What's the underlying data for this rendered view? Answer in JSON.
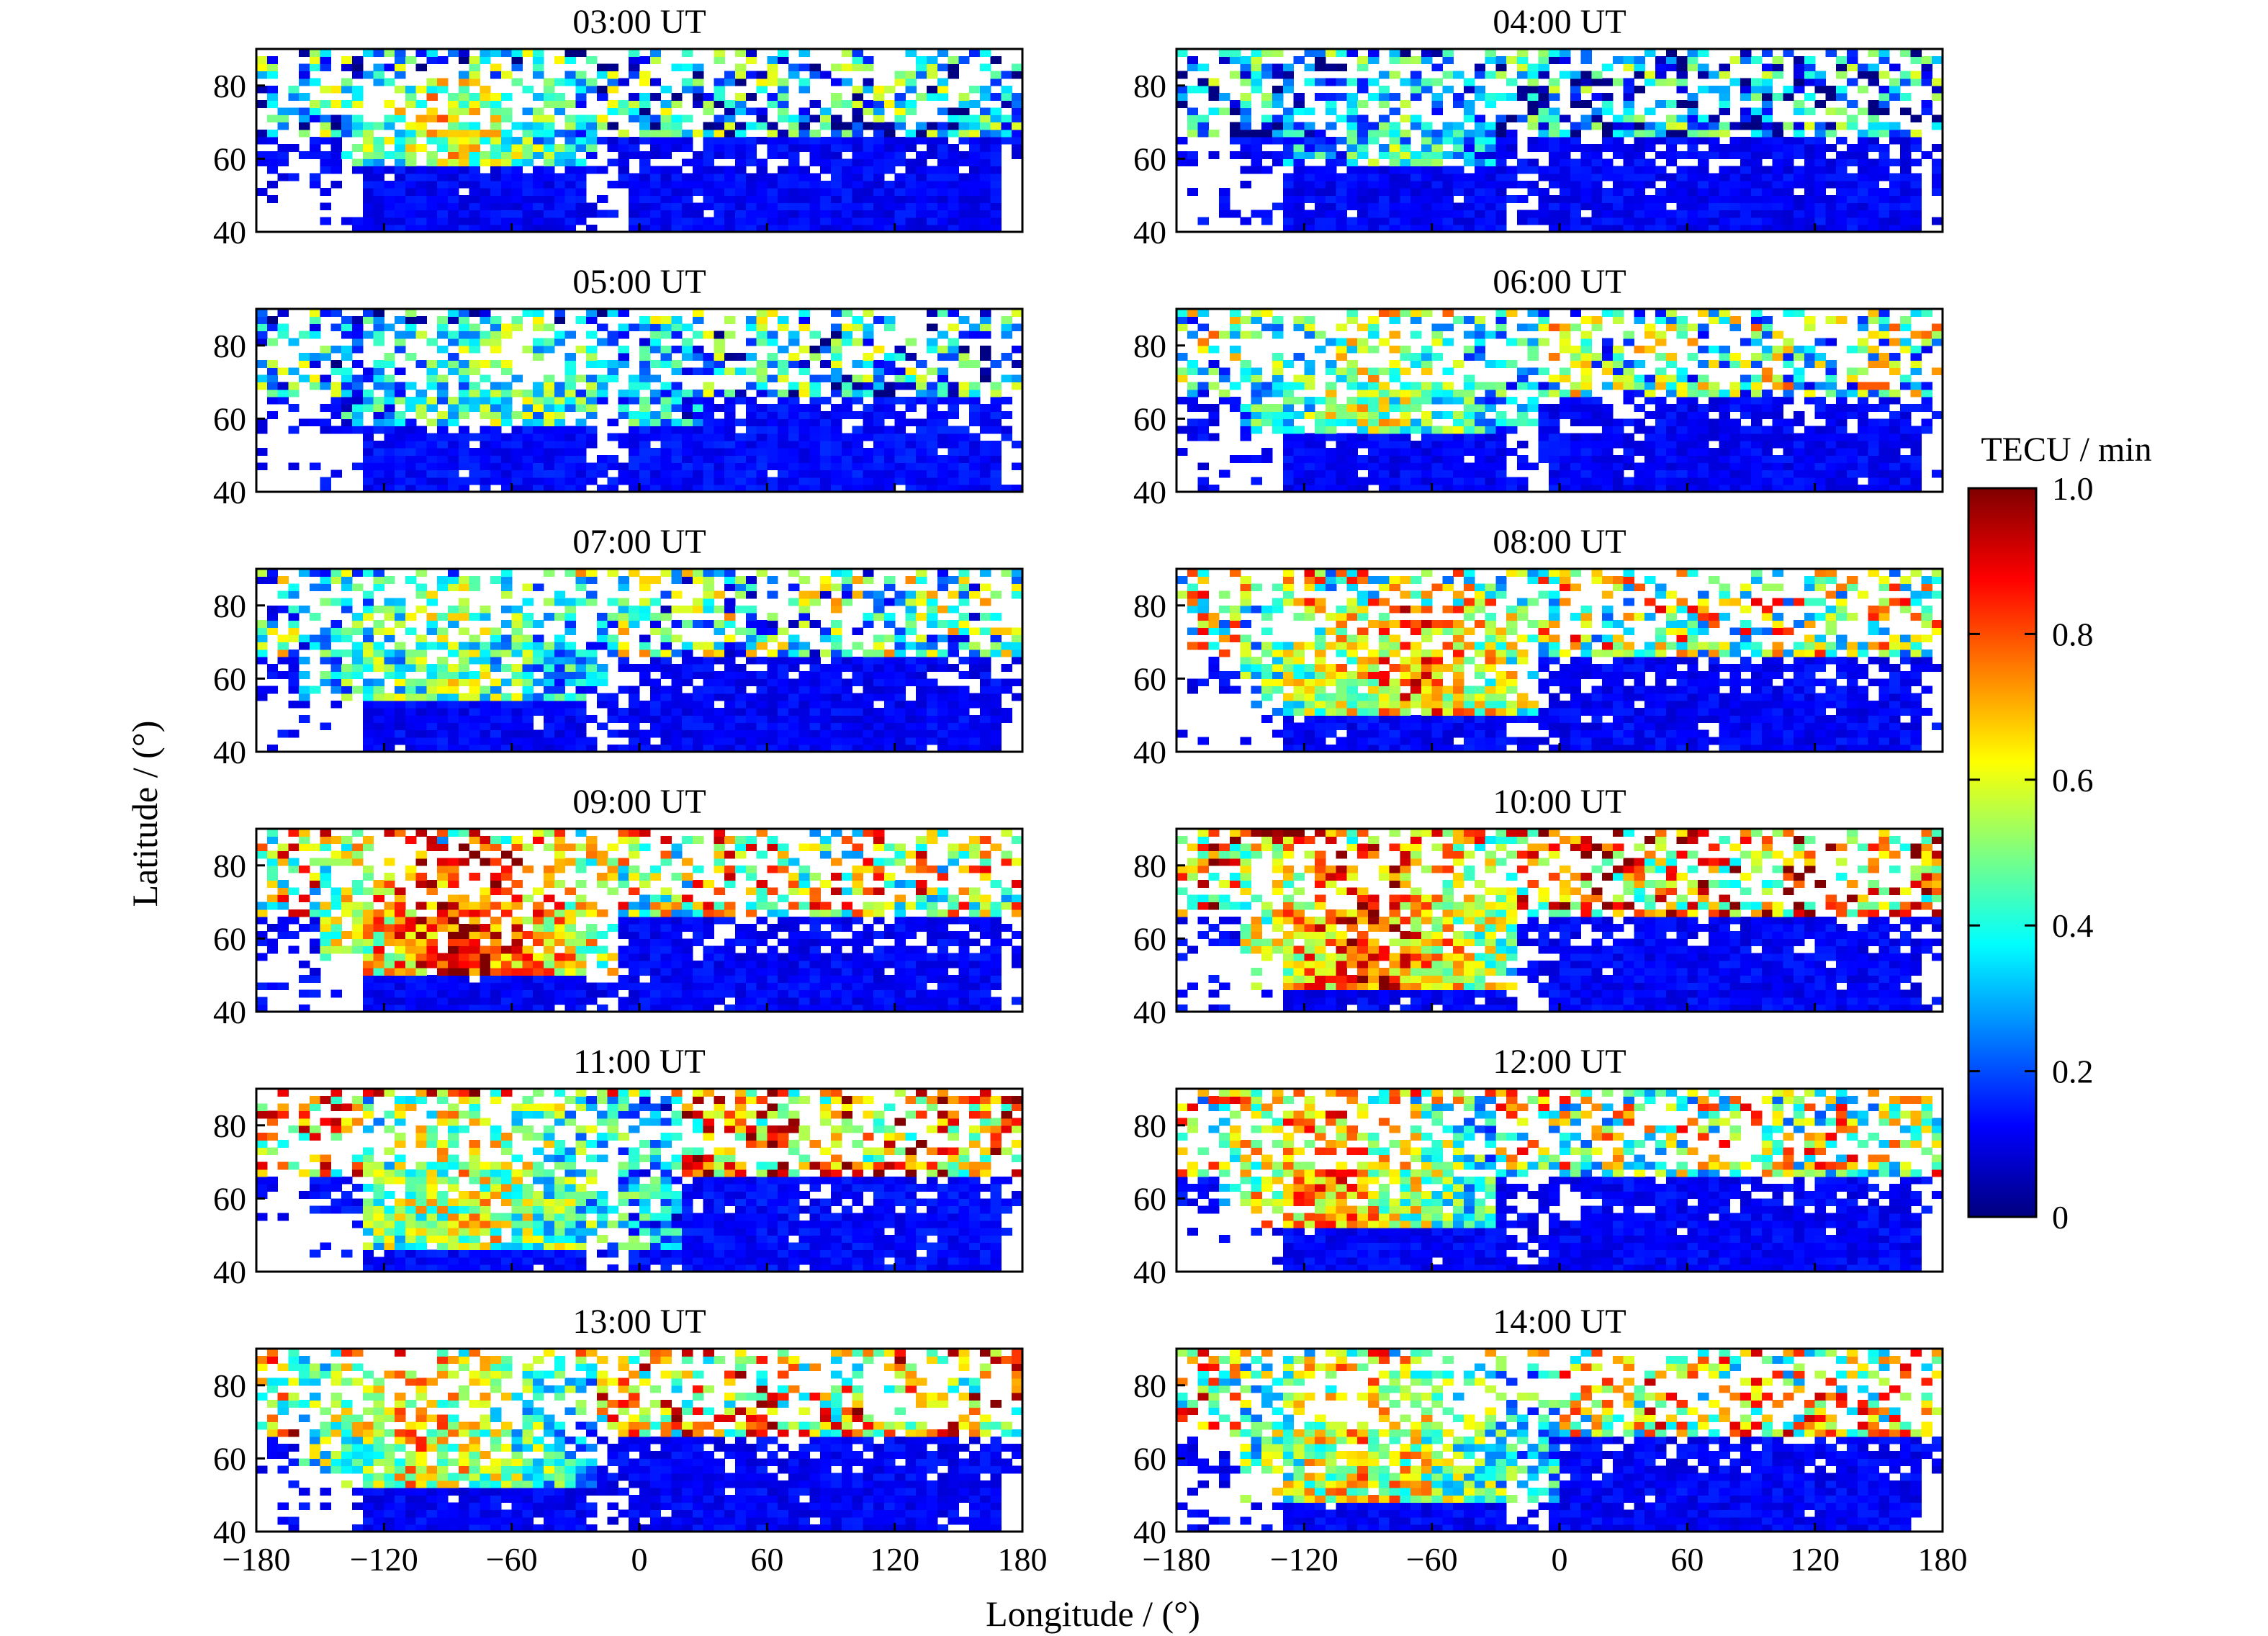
{
  "chart_data": {
    "type": "heatmap",
    "layout": "6 rows x 2 columns of map panels sharing axes",
    "xlabel": "Longitude / (°)",
    "ylabel": "Latitude / (°)",
    "xlim": [
      -180,
      180
    ],
    "ylim": [
      40,
      90
    ],
    "xticks": [
      "−180",
      "−120",
      "−60",
      "0",
      "60",
      "120",
      "180"
    ],
    "yticks": [
      "40",
      "60",
      "80"
    ],
    "colorbar": {
      "title": "TECU / min",
      "range": [
        0,
        1.0
      ],
      "ticks": [
        "0",
        "0.2",
        "0.4",
        "0.6",
        "0.8",
        "1.0"
      ],
      "colormap": "jet",
      "colors": [
        "#00007f",
        "#0000ff",
        "#007fff",
        "#00ffff",
        "#7fff7f",
        "#ffff00",
        "#ff7f00",
        "#ff0000",
        "#7f0000"
      ]
    },
    "panels": [
      {
        "title": "03:00  UT",
        "oval_lon": [
          -140,
          -20
        ],
        "oval_lat": [
          58,
          82
        ],
        "oval_peak_lon": -90,
        "oval_value": 0.6,
        "background_value": 0.12,
        "sparse_value": 0.3
      },
      {
        "title": "04:00  UT",
        "oval_lon": [
          -130,
          -30
        ],
        "oval_lat": [
          58,
          84
        ],
        "oval_peak_lon": -80,
        "oval_value": 0.4,
        "background_value": 0.12,
        "sparse_value": 0.25
      },
      {
        "title": "05:00  UT",
        "oval_lon": [
          -140,
          30
        ],
        "oval_lat": [
          58,
          86
        ],
        "oval_peak_lon": -60,
        "oval_value": 0.45,
        "background_value": 0.13,
        "sparse_value": 0.3
      },
      {
        "title": "06:00  UT",
        "oval_lon": [
          -150,
          -10
        ],
        "oval_lat": [
          56,
          88
        ],
        "oval_peak_lon": -90,
        "oval_value": 0.55,
        "background_value": 0.12,
        "sparse_value": 0.45
      },
      {
        "title": "07:00  UT",
        "oval_lon": [
          -160,
          -10
        ],
        "oval_lat": [
          54,
          88
        ],
        "oval_peak_lon": -90,
        "oval_value": 0.5,
        "background_value": 0.12,
        "sparse_value": 0.4
      },
      {
        "title": "08:00  UT",
        "oval_lon": [
          -150,
          -10
        ],
        "oval_lat": [
          50,
          80
        ],
        "oval_peak_lon": -70,
        "oval_value": 0.75,
        "background_value": 0.12,
        "sparse_value": 0.55
      },
      {
        "title": "09:00  UT",
        "oval_lon": [
          -150,
          -10
        ],
        "oval_lat": [
          50,
          86
        ],
        "oval_peak_lon": -80,
        "oval_value": 0.9,
        "background_value": 0.12,
        "sparse_value": 0.6
      },
      {
        "title": "10:00  UT",
        "oval_lon": [
          -150,
          -20
        ],
        "oval_lat": [
          46,
          86
        ],
        "oval_peak_lon": -90,
        "oval_value": 0.85,
        "background_value": 0.12,
        "sparse_value": 0.7
      },
      {
        "title": "11:00  UT",
        "oval_lon": [
          -130,
          20
        ],
        "oval_lat": [
          46,
          88
        ],
        "oval_peak_lon": -80,
        "oval_value": 0.6,
        "background_value": 0.13,
        "sparse_value": 0.7
      },
      {
        "title": "12:00  UT",
        "oval_lon": [
          -160,
          -30
        ],
        "oval_lat": [
          52,
          86
        ],
        "oval_peak_lon": -110,
        "oval_value": 0.75,
        "background_value": 0.12,
        "sparse_value": 0.55
      },
      {
        "title": "13:00  UT",
        "oval_lon": [
          -160,
          -20
        ],
        "oval_lat": [
          52,
          88
        ],
        "oval_peak_lon": -100,
        "oval_value": 0.65,
        "background_value": 0.12,
        "sparse_value": 0.65
      },
      {
        "title": "14:00  UT",
        "oval_lon": [
          -150,
          0
        ],
        "oval_lat": [
          48,
          88
        ],
        "oval_peak_lon": -90,
        "oval_value": 0.65,
        "background_value": 0.12,
        "sparse_value": 0.6
      }
    ]
  }
}
